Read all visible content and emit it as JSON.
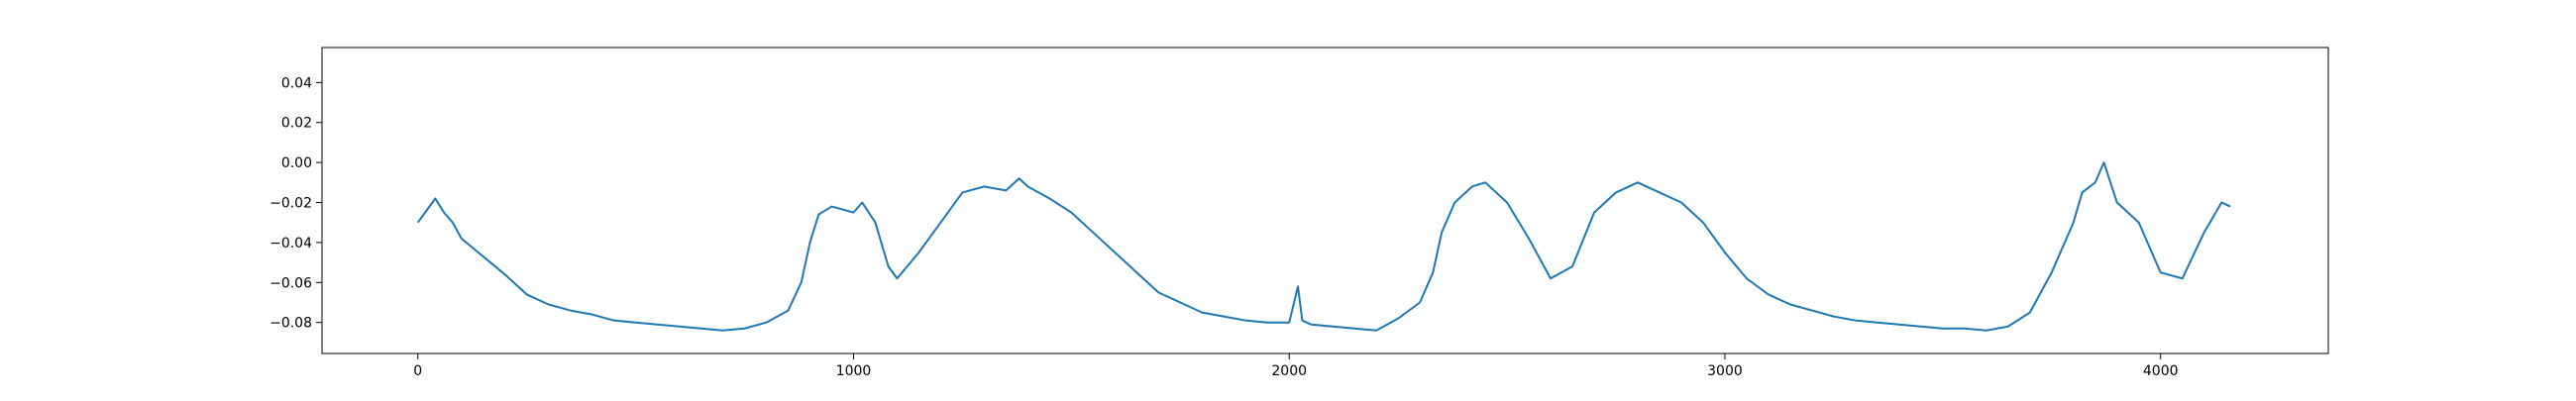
{
  "chart_data": {
    "type": "line",
    "title": "",
    "xlabel": "",
    "ylabel": "",
    "xlim": [
      -220,
      4385
    ],
    "ylim": [
      -0.0955,
      0.0575
    ],
    "x_ticks": [
      0,
      1000,
      2000,
      3000,
      4000
    ],
    "x_tick_labels": [
      "0",
      "1000",
      "2000",
      "3000",
      "4000"
    ],
    "y_ticks": [
      0.04,
      0.02,
      0.0,
      -0.02,
      -0.04,
      -0.06,
      -0.08
    ],
    "y_tick_labels": [
      "0.04",
      "0.02",
      "0.00",
      "−0.02",
      "−0.04",
      "−0.06",
      "−0.08"
    ],
    "grid": false,
    "series": [
      {
        "color": "#1f77b4",
        "x": [
          0,
          20,
          40,
          60,
          80,
          100,
          150,
          200,
          250,
          300,
          350,
          400,
          450,
          500,
          550,
          600,
          650,
          700,
          750,
          800,
          850,
          880,
          900,
          920,
          950,
          1000,
          1020,
          1050,
          1080,
          1100,
          1150,
          1200,
          1250,
          1300,
          1350,
          1380,
          1400,
          1450,
          1500,
          1550,
          1600,
          1650,
          1700,
          1750,
          1800,
          1850,
          1900,
          1950,
          2000,
          2020,
          2030,
          2050,
          2100,
          2150,
          2200,
          2250,
          2300,
          2330,
          2350,
          2380,
          2420,
          2450,
          2500,
          2550,
          2600,
          2650,
          2700,
          2750,
          2800,
          2850,
          2900,
          2950,
          3000,
          3050,
          3100,
          3150,
          3200,
          3250,
          3300,
          3350,
          3400,
          3450,
          3500,
          3550,
          3600,
          3650,
          3700,
          3750,
          3800,
          3820,
          3850,
          3870,
          3900,
          3950,
          4000,
          4050,
          4100,
          4140,
          4160
        ],
        "y": [
          -0.03,
          -0.024,
          -0.018,
          -0.025,
          -0.03,
          -0.038,
          -0.047,
          -0.056,
          -0.066,
          -0.071,
          -0.074,
          -0.076,
          -0.079,
          -0.08,
          -0.081,
          -0.082,
          -0.083,
          -0.084,
          -0.083,
          -0.08,
          -0.074,
          -0.06,
          -0.04,
          -0.026,
          -0.022,
          -0.025,
          -0.02,
          -0.03,
          -0.052,
          -0.058,
          -0.045,
          -0.03,
          -0.015,
          -0.012,
          -0.014,
          -0.008,
          -0.012,
          -0.018,
          -0.025,
          -0.035,
          -0.045,
          -0.055,
          -0.065,
          -0.07,
          -0.075,
          -0.077,
          -0.079,
          -0.08,
          -0.08,
          -0.062,
          -0.079,
          -0.081,
          -0.082,
          -0.083,
          -0.084,
          -0.078,
          -0.07,
          -0.055,
          -0.035,
          -0.02,
          -0.012,
          -0.01,
          -0.02,
          -0.038,
          -0.058,
          -0.052,
          -0.025,
          -0.015,
          -0.01,
          -0.015,
          -0.02,
          -0.03,
          -0.045,
          -0.058,
          -0.066,
          -0.071,
          -0.074,
          -0.077,
          -0.079,
          -0.08,
          -0.081,
          -0.082,
          -0.083,
          -0.083,
          -0.084,
          -0.082,
          -0.075,
          -0.055,
          -0.03,
          -0.015,
          -0.01,
          0.0,
          -0.02,
          -0.03,
          -0.055,
          -0.058,
          -0.035,
          -0.02,
          -0.022
        ]
      }
    ]
  }
}
